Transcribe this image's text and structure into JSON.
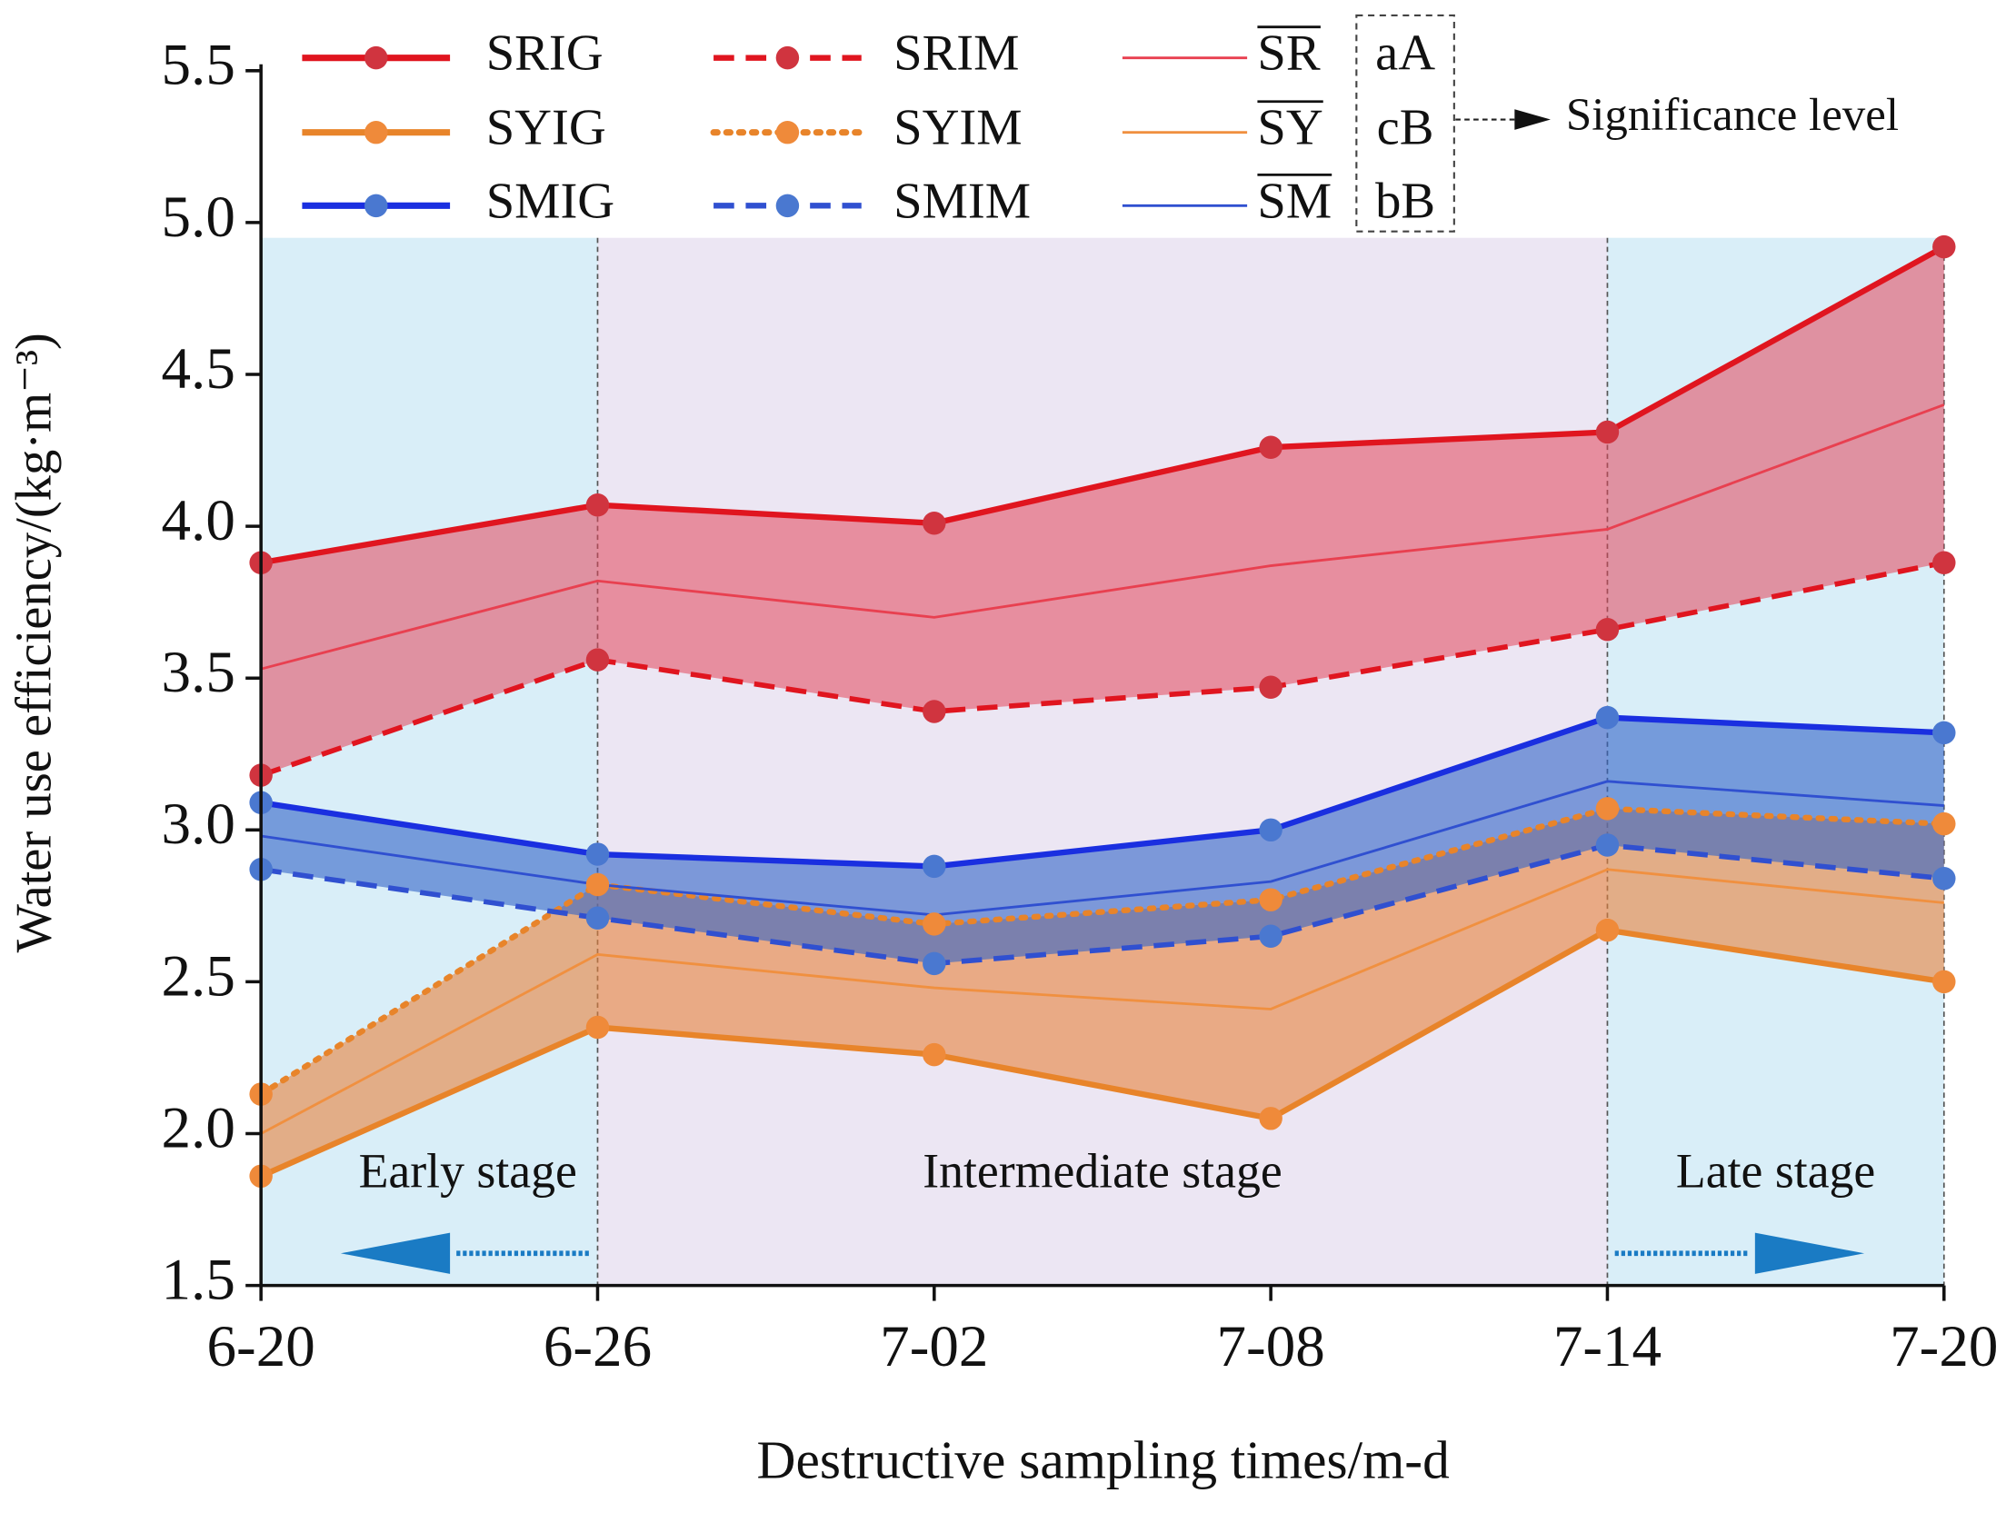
{
  "chart_data": {
    "type": "line",
    "x_label": "Destructive sampling times/m-d",
    "y_label": "Water use efficiency/(kg·m⁻³)",
    "categories": [
      "6-20",
      "6-26",
      "7-02",
      "7-08",
      "7-14",
      "7-20"
    ],
    "ylim": [
      1.5,
      5.5
    ],
    "yticks": [
      1.5,
      {
        "value": 2,
        "label": "2.0"
      },
      2.5,
      {
        "value": 3,
        "label": "3.0"
      },
      3.5,
      {
        "value": 4,
        "label": "4.0"
      },
      4.5,
      {
        "value": 5,
        "label": "5.0"
      },
      5.5
    ],
    "stages": [
      "Early stage",
      "Intermediate stage",
      "Late stage"
    ],
    "significance_label": "Significance level",
    "series": [
      {
        "name": "SRIG",
        "color": "#e0151f",
        "marker_color": "#d0343f",
        "line_style": "solid",
        "values": [
          3.88,
          4.07,
          4.01,
          4.26,
          4.31,
          4.92
        ]
      },
      {
        "name": "SRIM",
        "color": "#e0151f",
        "marker_color": "#d0343f",
        "line_style": "dashed",
        "fill_to": "SRIG",
        "fill": "rgba(228,70,90,0.55)",
        "values": [
          3.18,
          3.56,
          3.39,
          3.47,
          3.66,
          3.88
        ]
      },
      {
        "name": "SR",
        "color": "#e84050",
        "line_style": "thin",
        "letters": "aA",
        "values": [
          3.53,
          3.82,
          3.7,
          3.87,
          3.99,
          4.4
        ]
      },
      {
        "name": "SYIG",
        "color": "#e8842a",
        "marker_color": "#ef8a3a",
        "line_style": "solid",
        "values": [
          1.86,
          2.35,
          2.26,
          2.05,
          2.67,
          2.5
        ]
      },
      {
        "name": "SYIM",
        "color": "#e8842a",
        "marker_color": "#ef8a3a",
        "line_style": "dotted",
        "fill_to": "SYIG",
        "fill": "rgba(232,130,60,0.6)",
        "values": [
          2.13,
          2.82,
          2.69,
          2.77,
          3.07,
          3.02
        ]
      },
      {
        "name": "SY",
        "color": "#f09040",
        "line_style": "thin",
        "letters": "cB",
        "values": [
          2.0,
          2.59,
          2.48,
          2.41,
          2.87,
          2.76
        ]
      },
      {
        "name": "SMIG",
        "color": "#1a2fe0",
        "marker_color": "#4a78d0",
        "line_style": "solid",
        "values": [
          3.09,
          2.92,
          2.88,
          3.0,
          3.37,
          3.32
        ]
      },
      {
        "name": "SMIM",
        "color": "#3050d0",
        "marker_color": "#4a78d0",
        "line_style": "dashed",
        "fill_to": "SMIG",
        "fill": "rgba(50,100,200,0.6)",
        "values": [
          2.87,
          2.71,
          2.56,
          2.65,
          2.95,
          2.84
        ]
      },
      {
        "name": "SM",
        "color": "#3050d0",
        "line_style": "thin",
        "letters": "bB",
        "values": [
          2.98,
          2.82,
          2.72,
          2.83,
          3.16,
          3.08
        ]
      }
    ]
  }
}
